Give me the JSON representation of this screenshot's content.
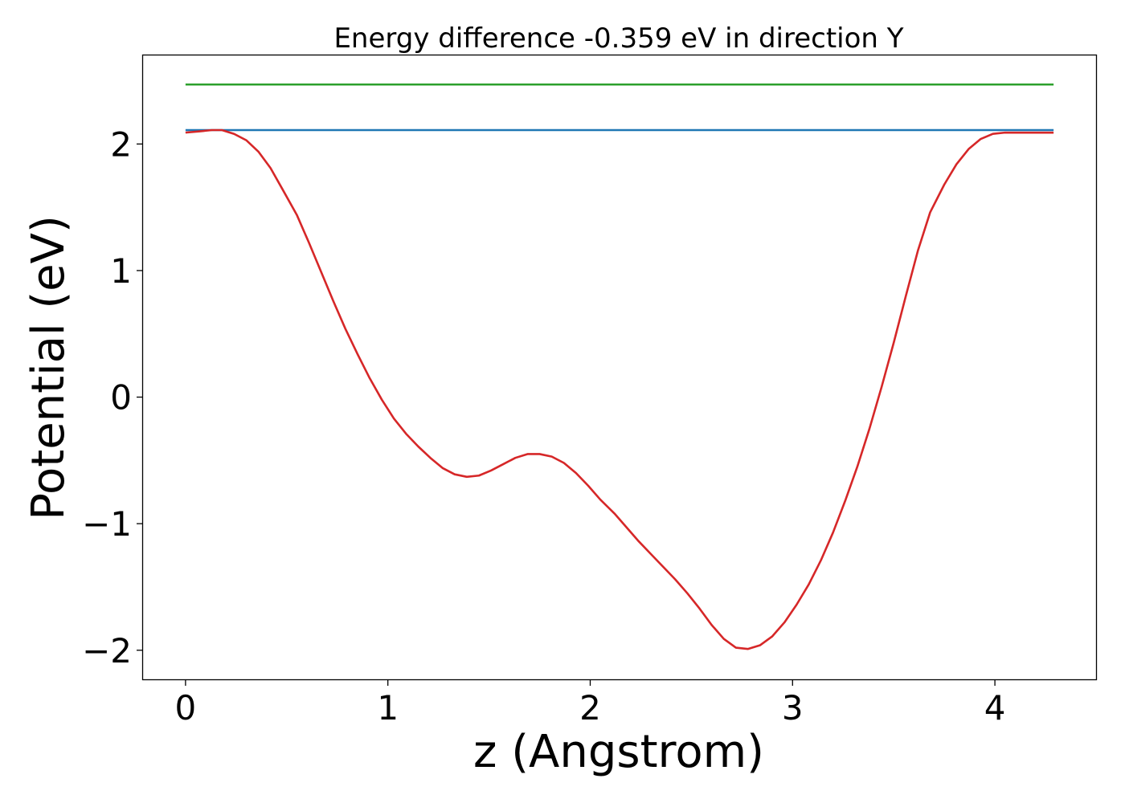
{
  "chart_data": {
    "type": "line",
    "title": "Energy difference -0.359 eV in direction Y",
    "xlabel": "z (Angstrom)",
    "ylabel": "Potential (eV)",
    "xlim": [
      -0.21,
      4.5
    ],
    "ylim": [
      -2.23,
      2.7
    ],
    "xticks": [
      0,
      1,
      2,
      3,
      4
    ],
    "xtick_labels": [
      "0",
      "1",
      "2",
      "3",
      "4"
    ],
    "yticks": [
      -2,
      -1,
      0,
      1,
      2
    ],
    "ytick_labels": [
      "−2",
      "−1",
      "0",
      "1",
      "2"
    ],
    "grid": false,
    "legend": "none",
    "series": [
      {
        "color": "#2ca02c",
        "x": [
          0,
          4.29
        ],
        "y": [
          2.47,
          2.47
        ]
      },
      {
        "color": "#1f77b4",
        "x": [
          0,
          4.29
        ],
        "y": [
          2.11,
          2.11
        ]
      },
      {
        "color": "#d62728",
        "x": [
          0,
          0.07,
          0.13,
          0.18,
          0.24,
          0.3,
          0.36,
          0.42,
          0.48,
          0.55,
          0.61,
          0.67,
          0.73,
          0.79,
          0.85,
          0.91,
          0.97,
          1.03,
          1.09,
          1.15,
          1.21,
          1.27,
          1.33,
          1.39,
          1.45,
          1.51,
          1.57,
          1.63,
          1.69,
          1.75,
          1.81,
          1.87,
          1.93,
          1.99,
          2.05,
          2.12,
          2.18,
          2.24,
          2.3,
          2.36,
          2.42,
          2.48,
          2.54,
          2.6,
          2.66,
          2.72,
          2.78,
          2.84,
          2.9,
          2.96,
          3.02,
          3.08,
          3.14,
          3.2,
          3.26,
          3.32,
          3.38,
          3.44,
          3.5,
          3.56,
          3.62,
          3.68,
          3.75,
          3.81,
          3.87,
          3.93,
          3.99,
          4.05,
          4.11,
          4.17,
          4.23,
          4.29
        ],
        "y": [
          2.09,
          2.1,
          2.11,
          2.11,
          2.08,
          2.03,
          1.94,
          1.81,
          1.64,
          1.44,
          1.22,
          0.99,
          0.76,
          0.54,
          0.34,
          0.15,
          -0.02,
          -0.17,
          -0.29,
          -0.39,
          -0.48,
          -0.56,
          -0.61,
          -0.63,
          -0.62,
          -0.58,
          -0.53,
          -0.48,
          -0.45,
          -0.45,
          -0.47,
          -0.52,
          -0.6,
          -0.7,
          -0.81,
          -0.92,
          -1.03,
          -1.14,
          -1.24,
          -1.34,
          -1.44,
          -1.55,
          -1.67,
          -1.8,
          -1.91,
          -1.98,
          -1.99,
          -1.96,
          -1.89,
          -1.78,
          -1.64,
          -1.48,
          -1.29,
          -1.07,
          -0.82,
          -0.55,
          -0.25,
          0.08,
          0.43,
          0.8,
          1.16,
          1.46,
          1.68,
          1.84,
          1.96,
          2.04,
          2.08,
          2.09,
          2.09,
          2.09,
          2.09,
          2.09
        ]
      }
    ]
  }
}
